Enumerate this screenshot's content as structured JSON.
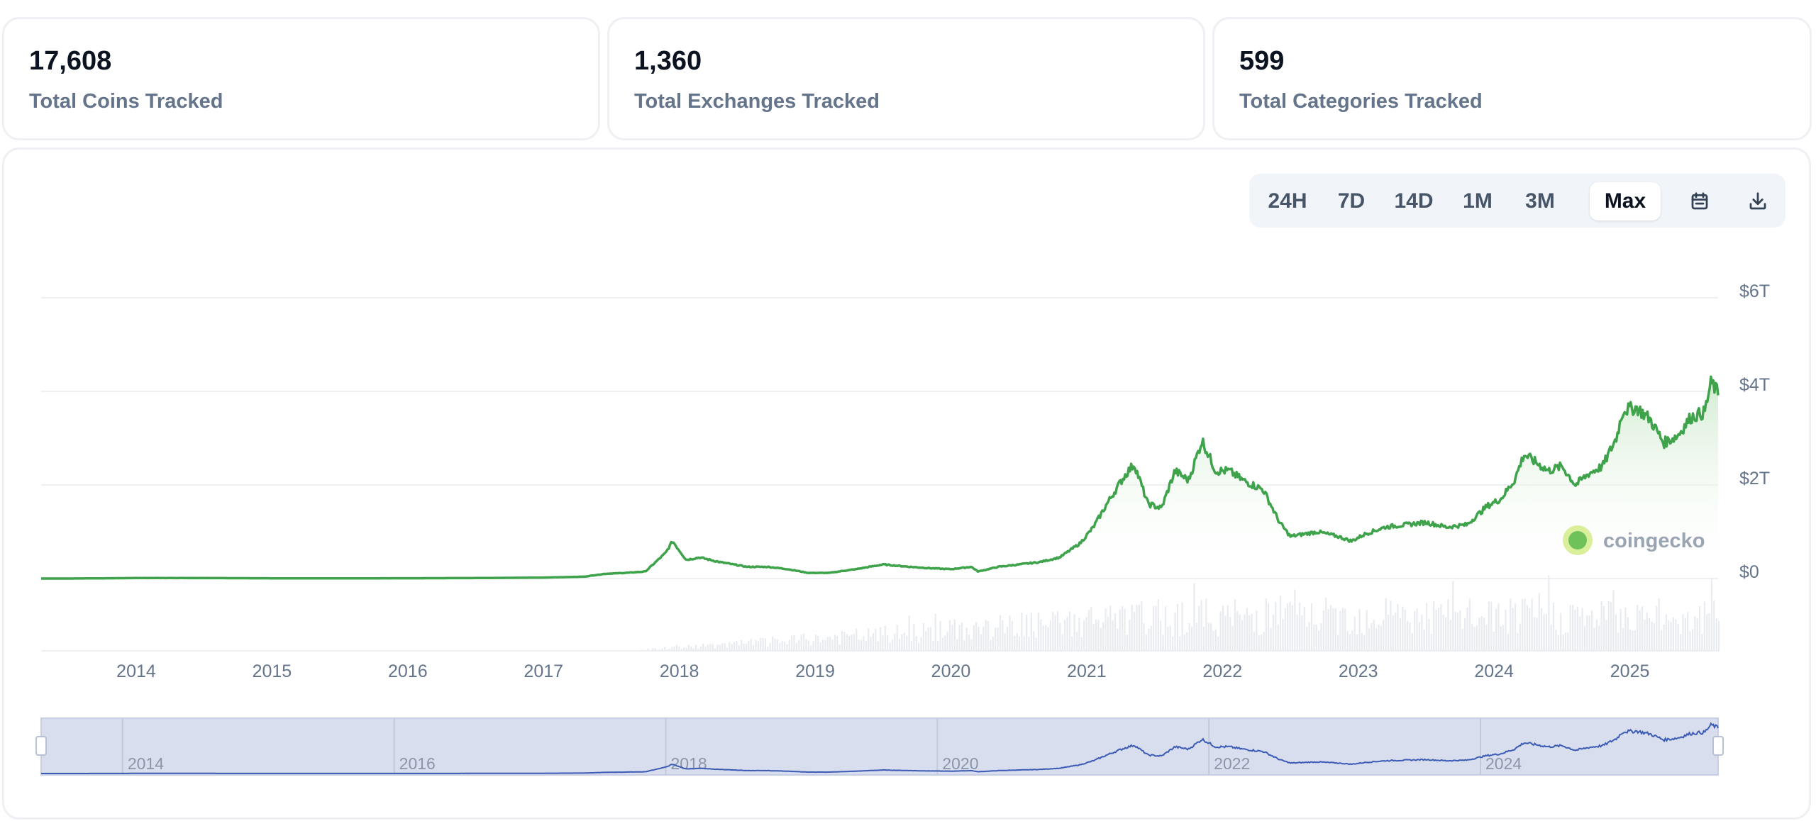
{
  "stats": [
    {
      "value": "17,608",
      "label": "Total Coins Tracked"
    },
    {
      "value": "1,360",
      "label": "Total Exchanges Tracked"
    },
    {
      "value": "599",
      "label": "Total Categories Tracked"
    }
  ],
  "range_buttons": [
    "24H",
    "7D",
    "14D",
    "1M",
    "3M",
    "Max"
  ],
  "active_range": "Max",
  "toolbar_icons": [
    "calendar-icon",
    "download-icon"
  ],
  "watermark": "coingecko",
  "colors": {
    "line": "#3ea34b",
    "fill_top": "#cfeacd",
    "volume": "#e8ebef",
    "navigator_band": "#d9deef",
    "navigator_line": "#3b5bb5",
    "axis_text": "#64748b",
    "grid": "#eef0f3"
  },
  "chart_data": {
    "type": "area",
    "title": "",
    "xlabel": "",
    "ylabel": "",
    "y_ticks": [
      "$0",
      "$2T",
      "$4T",
      "$6T"
    ],
    "ylim": [
      0,
      6
    ],
    "y_unit": "trillion USD",
    "x_ticks": [
      "2014",
      "2015",
      "2016",
      "2017",
      "2018",
      "2019",
      "2020",
      "2021",
      "2022",
      "2023",
      "2024",
      "2025"
    ],
    "xlim": [
      2013.3,
      2025.65
    ],
    "series": [
      {
        "x": [
          2013.3,
          2013.5,
          2014.0,
          2014.5,
          2015.0,
          2015.5,
          2016.0,
          2016.5,
          2017.0,
          2017.3,
          2017.45,
          2017.6,
          2017.75,
          2017.9,
          2017.95,
          2018.05,
          2018.15,
          2018.3,
          2018.4,
          2018.5,
          2018.65,
          2018.8,
          2018.95,
          2019.1,
          2019.3,
          2019.5,
          2019.7,
          2019.85,
          2020.0,
          2020.15,
          2020.2,
          2020.35,
          2020.5,
          2020.65,
          2020.8,
          2020.95,
          2021.05,
          2021.15,
          2021.28,
          2021.35,
          2021.45,
          2021.55,
          2021.65,
          2021.75,
          2021.85,
          2021.95,
          2022.05,
          2022.15,
          2022.3,
          2022.42,
          2022.5,
          2022.7,
          2022.85,
          2022.95,
          2023.05,
          2023.2,
          2023.35,
          2023.5,
          2023.65,
          2023.8,
          2023.95,
          2024.05,
          2024.15,
          2024.22,
          2024.3,
          2024.4,
          2024.5,
          2024.6,
          2024.7,
          2024.8,
          2024.9,
          2024.95,
          2025.05,
          2025.15,
          2025.25,
          2025.35,
          2025.45,
          2025.55,
          2025.6,
          2025.65
        ],
        "y": [
          0.0,
          0.0,
          0.01,
          0.01,
          0.005,
          0.004,
          0.006,
          0.01,
          0.02,
          0.04,
          0.1,
          0.12,
          0.15,
          0.55,
          0.8,
          0.4,
          0.45,
          0.35,
          0.3,
          0.25,
          0.25,
          0.2,
          0.12,
          0.12,
          0.2,
          0.3,
          0.25,
          0.22,
          0.2,
          0.25,
          0.15,
          0.25,
          0.3,
          0.35,
          0.45,
          0.75,
          1.1,
          1.6,
          2.2,
          2.45,
          1.6,
          1.5,
          2.3,
          2.1,
          2.95,
          2.3,
          2.3,
          2.1,
          1.9,
          1.2,
          0.9,
          1.0,
          0.9,
          0.8,
          0.95,
          1.1,
          1.15,
          1.2,
          1.1,
          1.15,
          1.55,
          1.7,
          2.1,
          2.65,
          2.5,
          2.3,
          2.4,
          2.0,
          2.25,
          2.4,
          3.0,
          3.6,
          3.65,
          3.4,
          2.9,
          3.05,
          3.45,
          3.55,
          4.2,
          3.95
        ]
      }
    ],
    "navigator": {
      "x_ticks": [
        "2014",
        "2016",
        "2018",
        "2020",
        "2022",
        "2024"
      ]
    }
  }
}
